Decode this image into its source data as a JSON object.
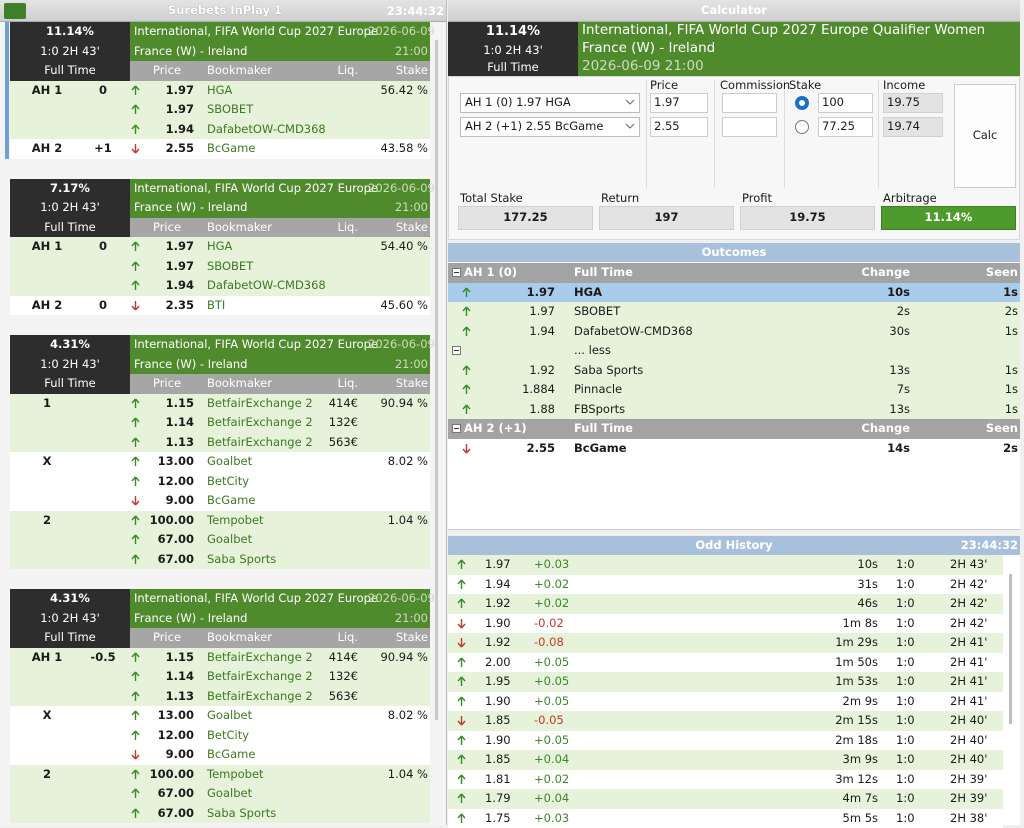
{
  "left": {
    "title": "Surebets InPlay 1",
    "time": "23:44:32",
    "columns": [
      "Price",
      "Bookmaker",
      "Liq.",
      "Stake"
    ],
    "surebets": [
      {
        "percent": "11.14%",
        "score": "1:0 2H 43'",
        "period": "Full Time",
        "league": "International, FIFA World Cup 2027 Europe",
        "date": "2026-06-09",
        "match": "France (W) - Ireland",
        "kickoff": "21:00",
        "selected": true,
        "groups": [
          {
            "outcome": "AH 1",
            "line": "0",
            "stake": "56.42 %",
            "rows": [
              {
                "dir": "up",
                "price": "1.97",
                "bookmaker": "HGA"
              },
              {
                "dir": "up",
                "price": "1.97",
                "bookmaker": "SBOBET"
              },
              {
                "dir": "up",
                "price": "1.94",
                "bookmaker": "DafabetOW-CMD368"
              }
            ]
          },
          {
            "outcome": "AH 2",
            "line": "+1",
            "stake": "43.58 %",
            "rows": [
              {
                "dir": "down",
                "price": "2.55",
                "bookmaker": "BcGame"
              }
            ]
          }
        ]
      },
      {
        "percent": "7.17%",
        "score": "1:0 2H 43'",
        "period": "Full Time",
        "league": "International, FIFA World Cup 2027 Europe",
        "date": "2026-06-09",
        "match": "France (W) - Ireland",
        "kickoff": "21:00",
        "selected": false,
        "groups": [
          {
            "outcome": "AH 1",
            "line": "0",
            "stake": "54.40 %",
            "rows": [
              {
                "dir": "up",
                "price": "1.97",
                "bookmaker": "HGA"
              },
              {
                "dir": "up",
                "price": "1.97",
                "bookmaker": "SBOBET"
              },
              {
                "dir": "up",
                "price": "1.94",
                "bookmaker": "DafabetOW-CMD368"
              }
            ]
          },
          {
            "outcome": "AH 2",
            "line": "0",
            "stake": "45.60 %",
            "rows": [
              {
                "dir": "down",
                "price": "2.35",
                "bookmaker": "BTI"
              }
            ]
          }
        ]
      },
      {
        "percent": "4.31%",
        "score": "1:0 2H 43'",
        "period": "Full Time",
        "league": "International, FIFA World Cup 2027 Europe",
        "date": "2026-06-09",
        "match": "France (W) - Ireland",
        "kickoff": "21:00",
        "selected": false,
        "groups": [
          {
            "outcome": "1",
            "stake": "90.94 %",
            "rows": [
              {
                "dir": "up",
                "price": "1.15",
                "bookmaker": "BetfairExchange 2",
                "liq": "414€"
              },
              {
                "dir": "up",
                "price": "1.14",
                "bookmaker": "BetfairExchange 2",
                "liq": "132€"
              },
              {
                "dir": "up",
                "price": "1.13",
                "bookmaker": "BetfairExchange 2",
                "liq": "563€"
              }
            ]
          },
          {
            "outcome": "X",
            "stake": "8.02 %",
            "rows": [
              {
                "dir": "up",
                "price": "13.00",
                "bookmaker": "Goalbet"
              },
              {
                "dir": "up",
                "price": "12.00",
                "bookmaker": "BetCity"
              },
              {
                "dir": "down",
                "price": "9.00",
                "bookmaker": "BcGame"
              }
            ]
          },
          {
            "outcome": "2",
            "stake": "1.04 %",
            "rows": [
              {
                "dir": "up",
                "price": "100.00",
                "bookmaker": "Tempobet"
              },
              {
                "dir": "up",
                "price": "67.00",
                "bookmaker": "Goalbet"
              },
              {
                "dir": "up",
                "price": "67.00",
                "bookmaker": "Saba Sports"
              }
            ]
          }
        ]
      },
      {
        "percent": "4.31%",
        "score": "1:0 2H 43'",
        "period": "Full Time",
        "league": "International, FIFA World Cup 2027 Europe",
        "date": "2026-06-09",
        "match": "France (W) - Ireland",
        "kickoff": "21:00",
        "selected": false,
        "groups": [
          {
            "outcome": "AH 1",
            "line": "-0.5",
            "stake": "90.94 %",
            "rows": [
              {
                "dir": "up",
                "price": "1.15",
                "bookmaker": "BetfairExchange 2",
                "liq": "414€"
              },
              {
                "dir": "up",
                "price": "1.14",
                "bookmaker": "BetfairExchange 2",
                "liq": "132€"
              },
              {
                "dir": "up",
                "price": "1.13",
                "bookmaker": "BetfairExchange 2",
                "liq": "563€"
              }
            ]
          },
          {
            "outcome": "X",
            "stake": "8.02 %",
            "rows": [
              {
                "dir": "up",
                "price": "13.00",
                "bookmaker": "Goalbet"
              },
              {
                "dir": "up",
                "price": "12.00",
                "bookmaker": "BetCity"
              },
              {
                "dir": "down",
                "price": "9.00",
                "bookmaker": "BcGame"
              }
            ]
          },
          {
            "outcome": "2",
            "stake": "1.04 %",
            "rows": [
              {
                "dir": "up",
                "price": "100.00",
                "bookmaker": "Tempobet"
              },
              {
                "dir": "up",
                "price": "67.00",
                "bookmaker": "Goalbet"
              },
              {
                "dir": "up",
                "price": "67.00",
                "bookmaker": "Saba Sports"
              }
            ]
          }
        ]
      }
    ]
  },
  "calculator": {
    "title": "Calculator",
    "header": {
      "percent": "11.14%",
      "score": "1:0 2H 43'",
      "period": "Full Time",
      "league": "International, FIFA World Cup 2027 Europe Qualifier Women",
      "match": "France (W) - Ireland",
      "datetime": "2026-06-09 21:00"
    },
    "columns": [
      "Price",
      "Commission",
      "Stake",
      "Income"
    ],
    "bets": [
      {
        "select": "AH 1 (0) 1.97 HGA",
        "price": "1.97",
        "checked": true,
        "stake": "100",
        "income": "19.75"
      },
      {
        "select": "AH 2 (+1) 2.55 BcGame",
        "price": "2.55",
        "checked": false,
        "stake": "77.25",
        "income": "19.74"
      }
    ],
    "button": "Calc",
    "totals": [
      {
        "label": "Total Stake",
        "value": "177.25"
      },
      {
        "label": "Return",
        "value": "197"
      },
      {
        "label": "Profit",
        "value": "19.75"
      },
      {
        "label": "Arbitrage",
        "value": "11.14%"
      }
    ]
  },
  "outcomes": {
    "title": "Outcomes",
    "groups": [
      {
        "name": "AH 1 (0)",
        "period": "Full Time",
        "change": "Change",
        "seen": "Seen",
        "rows": [
          {
            "dir": "up",
            "price": "1.97",
            "bookmaker": "HGA",
            "change": "10s",
            "seen": "1s",
            "selected": true
          },
          {
            "dir": "up",
            "price": "1.97",
            "bookmaker": "SBOBET",
            "change": "2s",
            "seen": "2s"
          },
          {
            "dir": "up",
            "price": "1.94",
            "bookmaker": "DafabetOW-CMD368",
            "change": "30s",
            "seen": "1s"
          },
          {
            "toggle": "... less"
          },
          {
            "dir": "up",
            "price": "1.92",
            "bookmaker": "Saba Sports",
            "change": "13s",
            "seen": "1s"
          },
          {
            "dir": "up",
            "price": "1.884",
            "bookmaker": "Pinnacle",
            "change": "7s",
            "seen": "1s"
          },
          {
            "dir": "up",
            "price": "1.88",
            "bookmaker": "FBSports",
            "change": "13s",
            "seen": "1s"
          }
        ]
      },
      {
        "name": "AH 2 (+1)",
        "period": "Full Time",
        "change": "Change",
        "seen": "Seen",
        "rows": [
          {
            "dir": "down",
            "price": "2.55",
            "bookmaker": "BcGame",
            "change": "14s",
            "seen": "2s"
          }
        ]
      }
    ]
  },
  "history": {
    "title": "Odd History",
    "time": "23:44:32",
    "rows": [
      {
        "dir": "up",
        "price": "1.97",
        "change": "+0.03",
        "ago": "10s",
        "score": "1:0",
        "minute": "2H 43'"
      },
      {
        "dir": "up",
        "price": "1.94",
        "change": "+0.02",
        "ago": "31s",
        "score": "1:0",
        "minute": "2H 42'"
      },
      {
        "dir": "up",
        "price": "1.92",
        "change": "+0.02",
        "ago": "46s",
        "score": "1:0",
        "minute": "2H 42'"
      },
      {
        "dir": "down",
        "price": "1.90",
        "change": "-0.02",
        "ago": "1m 8s",
        "score": "1:0",
        "minute": "2H 42'"
      },
      {
        "dir": "down",
        "price": "1.92",
        "change": "-0.08",
        "ago": "1m 29s",
        "score": "1:0",
        "minute": "2H 41'"
      },
      {
        "dir": "up",
        "price": "2.00",
        "change": "+0.05",
        "ago": "1m 50s",
        "score": "1:0",
        "minute": "2H 41'"
      },
      {
        "dir": "up",
        "price": "1.95",
        "change": "+0.05",
        "ago": "1m 53s",
        "score": "1:0",
        "minute": "2H 41'"
      },
      {
        "dir": "up",
        "price": "1.90",
        "change": "+0.05",
        "ago": "2m 9s",
        "score": "1:0",
        "minute": "2H 41'"
      },
      {
        "dir": "down",
        "price": "1.85",
        "change": "-0.05",
        "ago": "2m 15s",
        "score": "1:0",
        "minute": "2H 40'"
      },
      {
        "dir": "up",
        "price": "1.90",
        "change": "+0.05",
        "ago": "2m 18s",
        "score": "1:0",
        "minute": "2H 40'"
      },
      {
        "dir": "up",
        "price": "1.85",
        "change": "+0.04",
        "ago": "3m 9s",
        "score": "1:0",
        "minute": "2H 40'"
      },
      {
        "dir": "up",
        "price": "1.81",
        "change": "+0.02",
        "ago": "3m 12s",
        "score": "1:0",
        "minute": "2H 39'"
      },
      {
        "dir": "up",
        "price": "1.79",
        "change": "+0.04",
        "ago": "4m 7s",
        "score": "1:0",
        "minute": "2H 39'"
      },
      {
        "dir": "up",
        "price": "1.75",
        "change": "+0.03",
        "ago": "5m 5s",
        "score": "1:0",
        "minute": "2H 38'"
      }
    ]
  }
}
